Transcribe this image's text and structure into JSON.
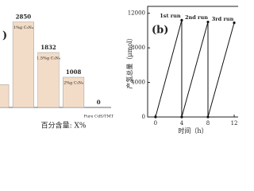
{
  "chart_data": [
    {
      "type": "bar",
      "panel_label": ")",
      "xlabel": "百分含量: X%",
      "categories": [
        null,
        "1%g C₃N₄",
        "1.5%g C₃N₄",
        "2%g C₃N₄",
        "Pure CdS/TMT"
      ],
      "values": [
        760,
        2850,
        1832,
        1008,
        0
      ],
      "color": "#f3dcc7",
      "ylim": [
        0,
        3000
      ]
    },
    {
      "type": "line",
      "panel_label": "(b)",
      "xlabel": "时间（h）",
      "ylabel": "产氢总量（μmol）",
      "x": [
        0,
        4,
        4,
        8,
        8,
        12
      ],
      "series": [
        {
          "color": "#111111",
          "values": [
            0,
            11200,
            0,
            11000,
            0,
            10900
          ]
        }
      ],
      "annotations": [
        "1st run",
        "2nd run",
        "3rd run"
      ],
      "xlim": [
        -1.2,
        12.6
      ],
      "ylim": [
        0,
        12800
      ],
      "xticks": [
        0,
        4,
        8,
        12
      ],
      "yticks": [
        0,
        4000,
        8000,
        12000
      ]
    }
  ]
}
